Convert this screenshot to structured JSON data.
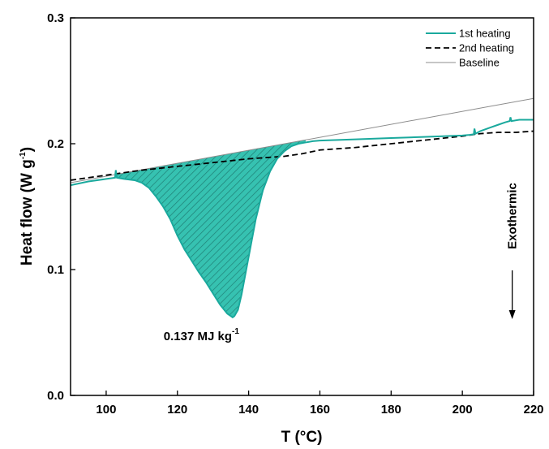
{
  "chart_data": {
    "type": "line",
    "xlabel": "T (°C)",
    "ylabel_main": "Heat flow (W g",
    "ylabel_sup": "-1",
    "ylabel_close": ")",
    "xlim": [
      90,
      220
    ],
    "ylim": [
      0.0,
      0.3
    ],
    "x_ticks": [
      100,
      120,
      140,
      160,
      180,
      200,
      220
    ],
    "y_ticks": [
      0.0,
      0.1,
      0.2,
      0.3
    ],
    "y_tick_labels": [
      "0.0",
      "0.1",
      "0.2",
      "0.3"
    ],
    "grid": false,
    "legend_position": "top-right",
    "series": [
      {
        "name": "1st heating",
        "color": "#1aa99d",
        "style": "solid",
        "x": [
          90,
          95,
          100,
          102.5,
          102.7,
          103.0,
          105,
          108,
          110,
          112,
          114,
          116,
          118,
          120,
          122,
          124,
          126,
          128,
          130,
          132,
          134,
          135,
          135.5,
          136,
          137,
          138,
          140,
          142,
          144,
          146,
          148,
          150,
          152,
          154,
          156,
          158,
          160,
          170,
          180,
          190,
          200,
          202,
          203.2,
          203.4,
          203.7,
          205,
          208,
          210,
          212,
          213.3,
          213.5,
          213.8,
          216,
          220
        ],
        "y": [
          0.167,
          0.17,
          0.172,
          0.173,
          0.179,
          0.173,
          0.172,
          0.171,
          0.169,
          0.165,
          0.158,
          0.15,
          0.14,
          0.127,
          0.116,
          0.107,
          0.098,
          0.09,
          0.081,
          0.072,
          0.065,
          0.063,
          0.062,
          0.063,
          0.068,
          0.08,
          0.11,
          0.14,
          0.163,
          0.178,
          0.188,
          0.194,
          0.198,
          0.2,
          0.201,
          0.202,
          0.2025,
          0.2035,
          0.2045,
          0.2055,
          0.2065,
          0.207,
          0.2075,
          0.212,
          0.208,
          0.21,
          0.213,
          0.215,
          0.217,
          0.218,
          0.221,
          0.218,
          0.219,
          0.219
        ]
      },
      {
        "name": "2nd heating",
        "color": "#000000",
        "style": "dashed",
        "x": [
          90,
          100,
          110,
          120,
          130,
          140,
          150,
          155,
          160,
          170,
          180,
          190,
          200,
          205,
          210,
          215,
          220
        ],
        "y": [
          0.171,
          0.175,
          0.179,
          0.182,
          0.185,
          0.188,
          0.19,
          0.192,
          0.195,
          0.197,
          0.2,
          0.203,
          0.206,
          0.208,
          0.209,
          0.209,
          0.21
        ]
      },
      {
        "name": "Baseline",
        "color": "#8c8c8c",
        "style": "thin",
        "x": [
          90,
          220
        ],
        "y": [
          0.169,
          0.236
        ]
      }
    ],
    "annotations": {
      "area_main": "0.137 MJ kg",
      "area_sup": "-1",
      "area_x": 124,
      "area_y": 0.047,
      "direction_label": "Exothermic",
      "direction_x": 214
    }
  }
}
